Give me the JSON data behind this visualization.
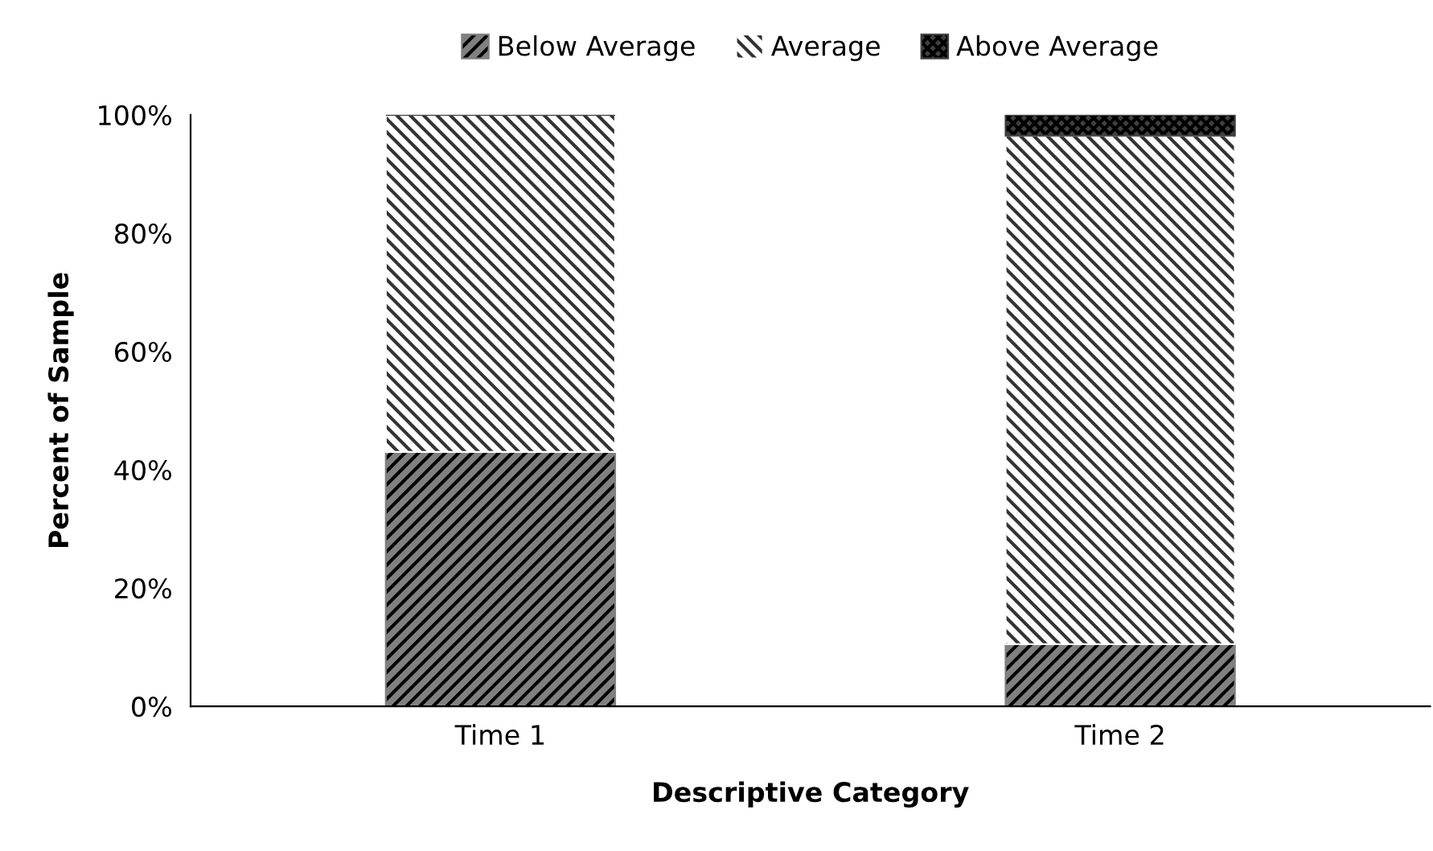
{
  "chart_data": {
    "type": "bar",
    "stacked": true,
    "xlabel": "Descriptive Category",
    "ylabel": "Percent of Sample",
    "categories": [
      "Time 1",
      "Time 2"
    ],
    "series": [
      {
        "name": "Below Average",
        "color": "#808080",
        "values": [
          43,
          10.5
        ]
      },
      {
        "name": "Average",
        "color": "#ffffff",
        "values": [
          57,
          86
        ]
      },
      {
        "name": "Above Average",
        "color": "#404040",
        "values": [
          0,
          3.5
        ]
      }
    ],
    "ylim": [
      0,
      100
    ],
    "yticks": [
      {
        "value": 0,
        "label": "0%"
      },
      {
        "value": 20,
        "label": "20%"
      },
      {
        "value": 40,
        "label": "40%"
      },
      {
        "value": 60,
        "label": "60%"
      },
      {
        "value": 80,
        "label": "80%"
      },
      {
        "value": 100,
        "label": "100%"
      }
    ],
    "grid": false,
    "legend": "top"
  }
}
